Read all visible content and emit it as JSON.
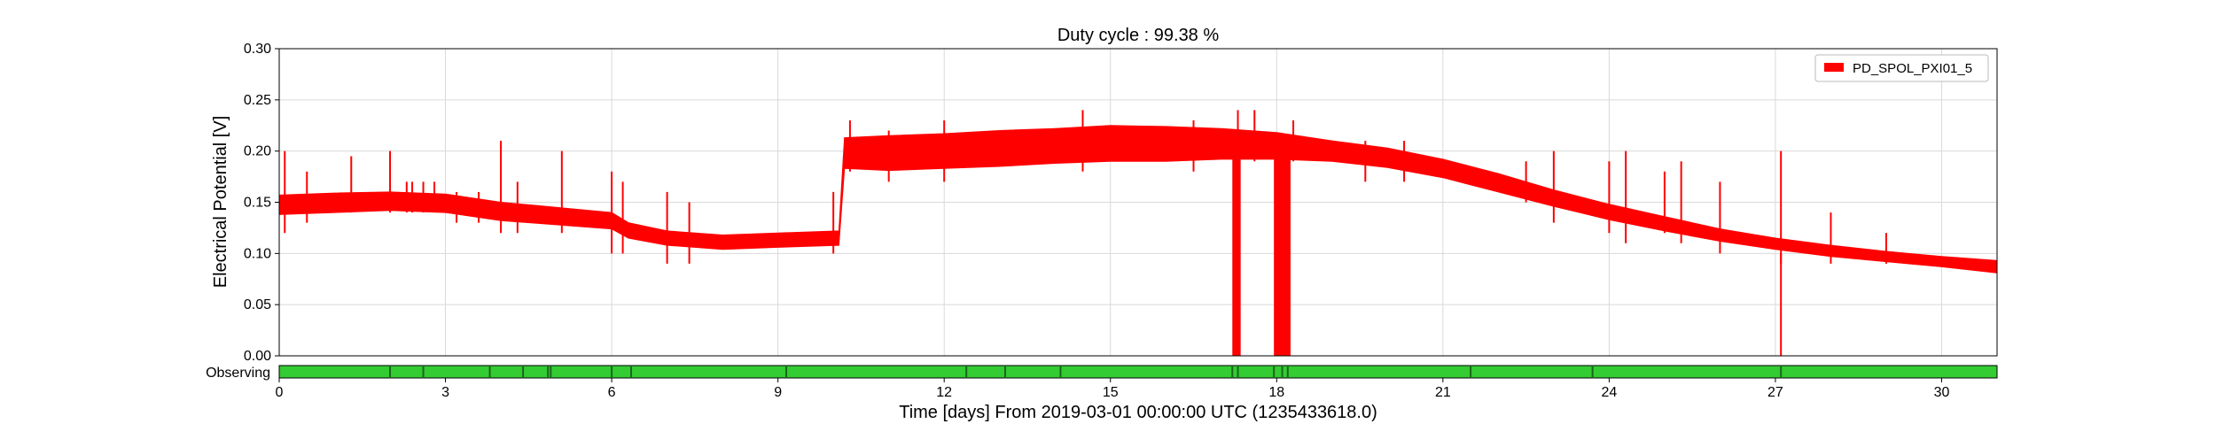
{
  "chart_data": {
    "type": "line",
    "title": "Duty cycle : 99.38 %",
    "xlabel": "Time [days] From 2019-03-01 00:00:00 UTC (1235433618.0)",
    "ylabel": "Electrical Potential [V]",
    "xlim": [
      0,
      31
    ],
    "ylim": [
      0,
      0.3
    ],
    "x_ticks": [
      0,
      3,
      6,
      9,
      12,
      15,
      18,
      21,
      24,
      27,
      30
    ],
    "x_tick_labels": [
      "0",
      "3",
      "6",
      "9",
      "12",
      "15",
      "18",
      "21",
      "24",
      "27",
      "30"
    ],
    "y_ticks": [
      0,
      0.05,
      0.1,
      0.15,
      0.2,
      0.25,
      0.3
    ],
    "y_tick_labels": [
      "0.00",
      "0.05",
      "0.10",
      "0.15",
      "0.20",
      "0.25",
      "0.30"
    ],
    "grid": true,
    "legend_position": "top-right",
    "series": [
      {
        "name": "PD_SPOL_PXI01_5",
        "color": "#ff0000",
        "band": {
          "x": [
            0,
            1,
            2,
            3,
            4,
            5,
            6,
            6.3,
            7,
            8,
            9,
            10.1,
            10.2,
            11,
            12,
            13,
            14,
            15,
            16,
            17,
            18,
            19,
            20,
            21,
            22,
            23,
            24,
            25,
            26,
            27,
            28,
            29,
            30,
            31
          ],
          "lower": [
            0.138,
            0.14,
            0.142,
            0.14,
            0.132,
            0.128,
            0.124,
            0.115,
            0.108,
            0.104,
            0.106,
            0.108,
            0.183,
            0.181,
            0.183,
            0.185,
            0.188,
            0.19,
            0.19,
            0.192,
            0.192,
            0.19,
            0.184,
            0.174,
            0.16,
            0.146,
            0.133,
            0.122,
            0.112,
            0.104,
            0.097,
            0.092,
            0.087,
            0.081
          ],
          "upper": [
            0.157,
            0.159,
            0.16,
            0.158,
            0.15,
            0.145,
            0.14,
            0.13,
            0.122,
            0.118,
            0.12,
            0.122,
            0.213,
            0.215,
            0.217,
            0.22,
            0.222,
            0.225,
            0.224,
            0.222,
            0.218,
            0.21,
            0.203,
            0.192,
            0.178,
            0.162,
            0.148,
            0.136,
            0.124,
            0.115,
            0.108,
            0.102,
            0.097,
            0.093
          ]
        },
        "spikes": [
          {
            "x": 0.1,
            "y0": 0.12,
            "y1": 0.2
          },
          {
            "x": 0.5,
            "y0": 0.13,
            "y1": 0.18
          },
          {
            "x": 1.3,
            "y0": 0.14,
            "y1": 0.195
          },
          {
            "x": 2.0,
            "y0": 0.14,
            "y1": 0.2
          },
          {
            "x": 2.3,
            "y0": 0.14,
            "y1": 0.17
          },
          {
            "x": 2.4,
            "y0": 0.14,
            "y1": 0.17
          },
          {
            "x": 2.6,
            "y0": 0.14,
            "y1": 0.17
          },
          {
            "x": 2.8,
            "y0": 0.14,
            "y1": 0.17
          },
          {
            "x": 3.2,
            "y0": 0.13,
            "y1": 0.16
          },
          {
            "x": 3.6,
            "y0": 0.13,
            "y1": 0.16
          },
          {
            "x": 4.0,
            "y0": 0.12,
            "y1": 0.21
          },
          {
            "x": 4.3,
            "y0": 0.12,
            "y1": 0.17
          },
          {
            "x": 5.1,
            "y0": 0.12,
            "y1": 0.2
          },
          {
            "x": 6.0,
            "y0": 0.1,
            "y1": 0.18
          },
          {
            "x": 6.2,
            "y0": 0.1,
            "y1": 0.17
          },
          {
            "x": 7.0,
            "y0": 0.09,
            "y1": 0.16
          },
          {
            "x": 7.4,
            "y0": 0.09,
            "y1": 0.15
          },
          {
            "x": 10.0,
            "y0": 0.1,
            "y1": 0.16
          },
          {
            "x": 10.3,
            "y0": 0.18,
            "y1": 0.23
          },
          {
            "x": 11.0,
            "y0": 0.17,
            "y1": 0.22
          },
          {
            "x": 12.0,
            "y0": 0.17,
            "y1": 0.23
          },
          {
            "x": 14.5,
            "y0": 0.18,
            "y1": 0.24
          },
          {
            "x": 16.5,
            "y0": 0.18,
            "y1": 0.23
          },
          {
            "x": 17.3,
            "y0": 0.19,
            "y1": 0.24
          },
          {
            "x": 17.6,
            "y0": 0.19,
            "y1": 0.24
          },
          {
            "x": 18.3,
            "y0": 0.19,
            "y1": 0.23
          },
          {
            "x": 19.6,
            "y0": 0.17,
            "y1": 0.21
          },
          {
            "x": 20.3,
            "y0": 0.17,
            "y1": 0.21
          },
          {
            "x": 22.5,
            "y0": 0.15,
            "y1": 0.19
          },
          {
            "x": 23.0,
            "y0": 0.13,
            "y1": 0.2
          },
          {
            "x": 24.0,
            "y0": 0.12,
            "y1": 0.19
          },
          {
            "x": 24.3,
            "y0": 0.11,
            "y1": 0.2
          },
          {
            "x": 25.0,
            "y0": 0.12,
            "y1": 0.18
          },
          {
            "x": 25.3,
            "y0": 0.11,
            "y1": 0.19
          },
          {
            "x": 26.0,
            "y0": 0.1,
            "y1": 0.17
          },
          {
            "x": 27.1,
            "y0": 0.09,
            "y1": 0.2
          },
          {
            "x": 28.0,
            "y0": 0.09,
            "y1": 0.14
          },
          {
            "x": 29.0,
            "y0": 0.09,
            "y1": 0.12
          }
        ],
        "dropouts": [
          {
            "x0": 17.2,
            "x1": 17.35
          },
          {
            "x0": 17.95,
            "x1": 18.25
          }
        ],
        "dropout_lines": [
          27.1
        ]
      }
    ],
    "state_bar": {
      "label": "Observing",
      "color": "#33cc33",
      "gap_color": "#1a661a",
      "gaps": [
        2.0,
        2.6,
        3.8,
        4.4,
        4.85,
        4.9,
        6.0,
        6.35,
        9.15,
        12.4,
        13.1,
        14.1,
        17.2,
        17.3,
        17.95,
        18.1,
        18.2,
        21.5,
        23.7,
        27.1
      ]
    }
  }
}
